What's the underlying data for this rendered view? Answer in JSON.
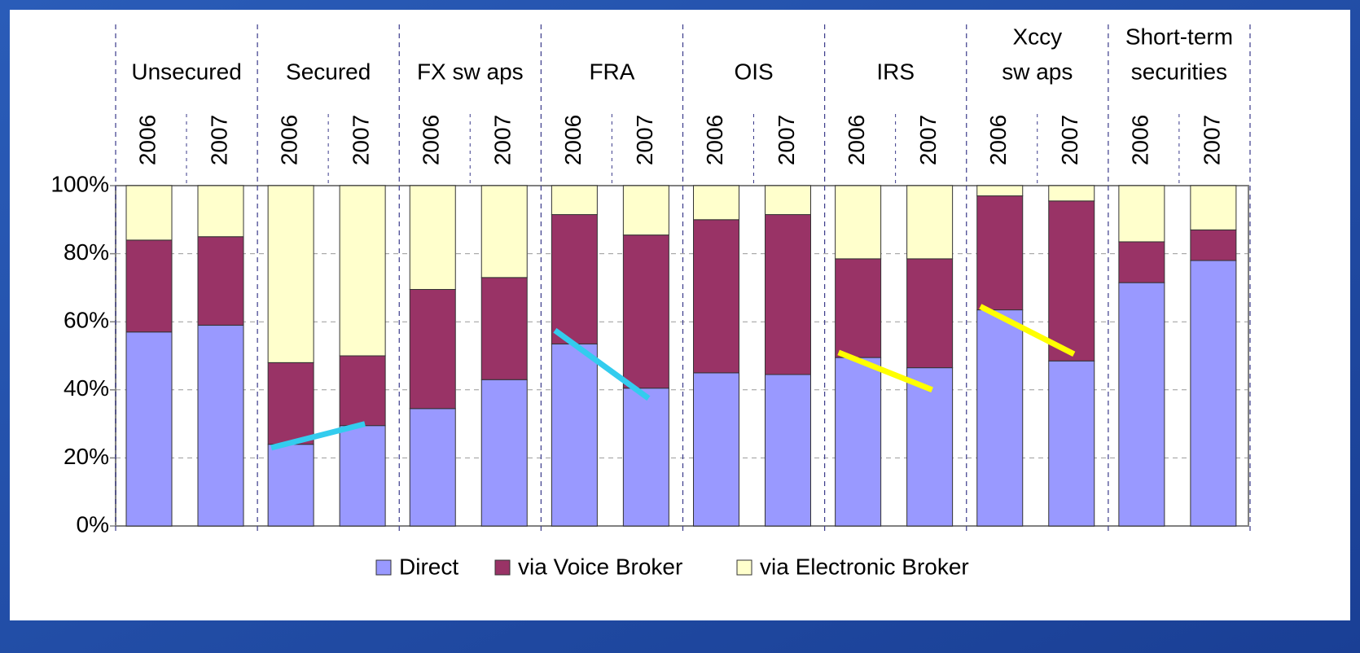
{
  "chart_data": {
    "type": "stacked_bar",
    "groups": [
      [
        "Unsecured"
      ],
      [
        "Secured"
      ],
      [
        "FX sw aps"
      ],
      [
        "FRA"
      ],
      [
        "OIS"
      ],
      [
        "IRS"
      ],
      [
        "Xccy",
        "sw aps"
      ],
      [
        "Short-term",
        "securities"
      ]
    ],
    "categories": [
      "2006",
      "2007",
      "2006",
      "2007",
      "2006",
      "2007",
      "2006",
      "2007",
      "2006",
      "2007",
      "2006",
      "2007",
      "2006",
      "2007",
      "2006",
      "2007"
    ],
    "series": [
      {
        "name": "Direct",
        "color": "#9999ff",
        "values": [
          57,
          59,
          24,
          29.5,
          34.5,
          43,
          53.5,
          40.5,
          45,
          44.5,
          49.5,
          46.5,
          63.5,
          48.5,
          71.5,
          78
        ]
      },
      {
        "name": "via Voice Broker",
        "color": "#993366",
        "values": [
          27,
          26,
          24,
          20.5,
          35,
          30,
          38,
          45,
          45,
          47,
          29,
          32,
          33.5,
          47,
          12,
          9
        ]
      },
      {
        "name": "via Electronic Broker",
        "color": "#ffffcc",
        "values": [
          16,
          15,
          52,
          50,
          30.5,
          27,
          8.5,
          14.5,
          10,
          8.5,
          21.5,
          21.5,
          3,
          4.5,
          16.5,
          13
        ]
      }
    ],
    "ylim": [
      0,
      100
    ],
    "yticks": [
      {
        "value": 0,
        "label": "0%"
      },
      {
        "value": 20,
        "label": "20%"
      },
      {
        "value": 40,
        "label": "40%"
      },
      {
        "value": 60,
        "label": "60%"
      },
      {
        "value": 80,
        "label": "80%"
      },
      {
        "value": 100,
        "label": "100%"
      }
    ],
    "grid": true,
    "legend": "bottom",
    "trend_lines": [
      {
        "group": 1,
        "color": "#33ccee",
        "values": [
          23,
          30
        ]
      },
      {
        "group": 3,
        "color": "#33ccee",
        "values": [
          57.5,
          37.5
        ]
      },
      {
        "group": 5,
        "color": "#ffff00",
        "values": [
          51,
          40
        ]
      },
      {
        "group": 6,
        "color": "#ffff00",
        "values": [
          64.5,
          50.5
        ]
      }
    ]
  }
}
